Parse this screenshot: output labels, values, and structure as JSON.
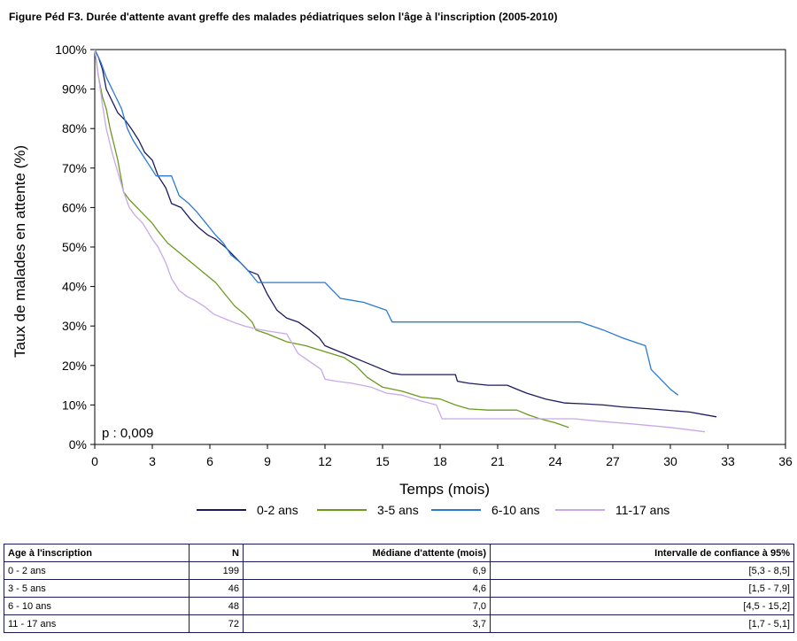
{
  "figure_title": "Figure Péd F3. Durée d'attente avant greffe des malades pédiatriques selon l'âge à l'inscription  (2005-2010)",
  "chart_data": {
    "type": "line",
    "title": "Figure Péd F3. Durée d'attente avant greffe des malades pédiatriques selon l'âge à l'inscription  (2005-2010)",
    "xlabel": "Temps (mois)",
    "ylabel": "Taux de malades en attente (%)",
    "xlim": [
      0,
      36
    ],
    "ylim": [
      0,
      100
    ],
    "x_ticks": [
      "0",
      "3",
      "6",
      "9",
      "12",
      "15",
      "18",
      "21",
      "24",
      "27",
      "30",
      "33",
      "36"
    ],
    "y_ticks": [
      "0%",
      "10%",
      "20%",
      "30%",
      "40%",
      "50%",
      "60%",
      "70%",
      "80%",
      "90%",
      "100%"
    ],
    "annotation": "p : 0,009",
    "legend_position": "bottom",
    "grid": false,
    "series": [
      {
        "name": "0-2 ans",
        "color": "#1c1a5e",
        "x": [
          0,
          0.2,
          0.4,
          0.6,
          0.9,
          1.2,
          1.6,
          1.9,
          2.3,
          2.6,
          3.0,
          3.3,
          3.7,
          4.0,
          4.5,
          5.0,
          5.4,
          5.9,
          6.3,
          6.8,
          7.2,
          7.6,
          8.0,
          8.5,
          9.0,
          9.5,
          10.0,
          10.6,
          11.2,
          11.7,
          12.0,
          12.5,
          13.0,
          13.5,
          14.0,
          14.5,
          15.0,
          15.5,
          16.0,
          17.0,
          18.0,
          18.8,
          18.9,
          19.5,
          20.5,
          21.5,
          22.0,
          22.5,
          23.5,
          24.5,
          25.5,
          26.5,
          27.5,
          29.0,
          31.0,
          32.4
        ],
        "y": [
          100,
          98,
          95,
          90,
          87,
          84,
          82,
          80,
          77,
          74,
          72,
          68,
          65,
          61,
          60,
          57,
          55,
          53,
          52,
          50,
          48,
          46,
          44,
          43,
          38,
          34,
          32,
          31,
          29,
          27,
          25,
          24,
          23,
          22,
          21,
          20,
          19,
          18,
          17.7,
          17.7,
          17.7,
          17.7,
          16,
          15.5,
          15,
          15,
          14,
          13,
          11.5,
          10.5,
          10.3,
          10,
          9.5,
          9,
          8.2,
          7
        ]
      },
      {
        "name": "3-5 ans",
        "color": "#6a9a1e",
        "x": [
          0,
          0.2,
          0.4,
          0.6,
          0.8,
          1.0,
          1.2,
          1.5,
          1.8,
          2.2,
          2.6,
          3.0,
          3.3,
          3.8,
          4.3,
          4.8,
          5.3,
          5.8,
          6.3,
          6.8,
          7.3,
          7.8,
          8.2,
          8.4,
          9.0,
          10.0,
          11.0,
          12.0,
          13.0,
          13.6,
          14.2,
          15.0,
          16.0,
          17.0,
          18.0,
          18.8,
          19.5,
          20.5,
          21.5,
          22.0,
          22.6,
          23.2,
          24.0,
          24.7
        ],
        "y": [
          100,
          93,
          88,
          85,
          80,
          76,
          72,
          64,
          62,
          60,
          58,
          56,
          54,
          51,
          49,
          47,
          45,
          43,
          41,
          38,
          35,
          33,
          31,
          29,
          28,
          26,
          25,
          23.5,
          22,
          20,
          17,
          14.5,
          13.5,
          12,
          11.5,
          10,
          9,
          8.7,
          8.7,
          8.7,
          7.5,
          6.5,
          5.5,
          4.3
        ]
      },
      {
        "name": "6-10 ans",
        "color": "#2a7ad2",
        "x": [
          0,
          0.3,
          0.6,
          1.0,
          1.4,
          1.7,
          2.0,
          2.4,
          2.8,
          3.2,
          3.6,
          4.0,
          4.4,
          4.9,
          5.3,
          5.8,
          6.3,
          6.7,
          7.1,
          7.6,
          8.0,
          8.5,
          9.0,
          9.5,
          10.2,
          10.8,
          11.4,
          12.0,
          12.4,
          12.8,
          13.4,
          14.0,
          14.6,
          15.2,
          15.5,
          16.5,
          18.0,
          20.0,
          22.0,
          24.0,
          25.3,
          26.5,
          27.5,
          28.7,
          29.0,
          29.6,
          30.0,
          30.4
        ],
        "y": [
          100,
          97,
          93,
          89,
          85,
          80,
          77,
          74,
          71,
          68,
          68,
          68,
          63,
          61,
          59,
          56,
          53,
          51,
          48,
          46,
          44,
          41,
          41,
          41,
          41,
          41,
          41,
          41,
          39,
          37,
          36.5,
          36,
          35,
          34,
          31,
          31,
          31,
          31,
          31,
          31,
          31,
          29,
          27,
          25,
          19,
          16,
          14,
          12.5
        ]
      },
      {
        "name": "11-17 ans",
        "color": "#c9a8e8",
        "x": [
          0,
          0.2,
          0.4,
          0.6,
          0.9,
          1.2,
          1.5,
          1.8,
          2.1,
          2.5,
          3.0,
          3.3,
          3.7,
          4.0,
          4.4,
          4.8,
          5.2,
          5.7,
          6.2,
          6.7,
          7.2,
          7.8,
          8.2,
          8.7,
          9.3,
          10.0,
          10.6,
          11.2,
          11.8,
          12.0,
          12.6,
          13.4,
          14.4,
          15.2,
          16.0,
          17.0,
          17.8,
          18.1,
          19.0,
          20.0,
          21.0,
          22.0,
          23.0,
          24.0,
          25.0,
          26.0,
          28.0,
          30.0,
          31.8
        ],
        "y": [
          100,
          93,
          86,
          80,
          74,
          69,
          64,
          60,
          58,
          56,
          52,
          50,
          46,
          42,
          39,
          37.5,
          36.5,
          35,
          33,
          32,
          31,
          30,
          29.5,
          29,
          28.5,
          28,
          23,
          21,
          19,
          16.5,
          16,
          15.5,
          14.5,
          13,
          12.5,
          11,
          10,
          6.5,
          6.5,
          6.5,
          6.5,
          6.5,
          6.5,
          6.5,
          6.5,
          6,
          5.2,
          4.3,
          3.2
        ]
      }
    ]
  },
  "table": {
    "headers": [
      "Age à l'inscription",
      "N",
      "Médiane d'attente (mois)",
      "Intervalle de confiance à 95%"
    ],
    "rows": [
      [
        "0 - 2 ans",
        "199",
        "6,9",
        "[5,3 - 8,5]"
      ],
      [
        "3 - 5 ans",
        "46",
        "4,6",
        "[1,5 - 7,9]"
      ],
      [
        "6 - 10 ans",
        "48",
        "7,0",
        "[4,5 - 15,2]"
      ],
      [
        "11 - 17 ans",
        "72",
        "3,7",
        "[1,7 - 5,1]"
      ]
    ]
  }
}
